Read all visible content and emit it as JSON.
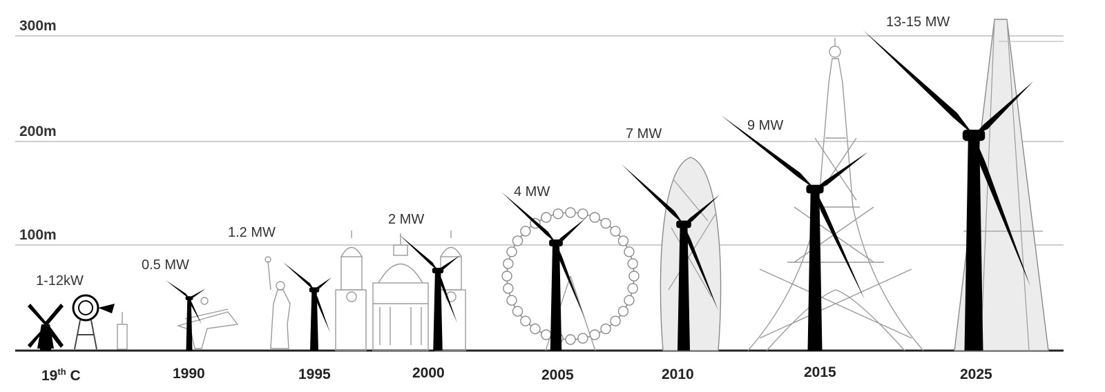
{
  "scale": {
    "labels": [
      "300m",
      "200m",
      "100m"
    ],
    "unit": "m"
  },
  "eras": [
    {
      "year_label": "19th C",
      "power": "1-12kW",
      "icon": "windmill-and-windpump-icon"
    },
    {
      "year_label": "1990",
      "power": "0.5 MW",
      "landmark": "christ-the-redeemer-icon"
    },
    {
      "year_label": "1995",
      "power": "1.2 MW",
      "landmark": "statue-of-liberty-icon"
    },
    {
      "year_label": "2000",
      "power": "2 MW",
      "landmark": "st-pauls-cathedral-icon"
    },
    {
      "year_label": "2005",
      "power": "4 MW",
      "landmark": "london-eye-icon"
    },
    {
      "year_label": "2010",
      "power": "7 MW",
      "landmark": "gherkin-tower-icon"
    },
    {
      "year_label": "2015",
      "power": "9 MW",
      "landmark": "eiffel-tower-icon"
    },
    {
      "year_label": "2025",
      "power": "13-15 MW",
      "landmark": "shard-tower-icon"
    }
  ],
  "colors": {
    "turbine": "#000000",
    "gridline": "#bfbfbf",
    "landmark": "#9a9a9a",
    "text": "#222222"
  }
}
